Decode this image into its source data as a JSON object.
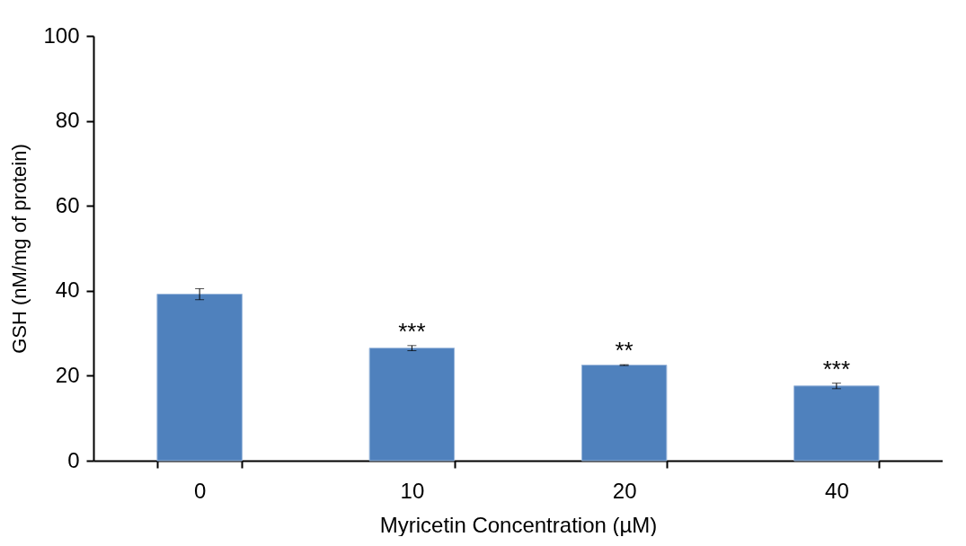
{
  "chart_data": {
    "type": "bar",
    "xlabel": "Myricetin Concentration (µM)",
    "ylabel": "GSH (nM/mg of protein)",
    "categories": [
      "0",
      "10",
      "20",
      "40"
    ],
    "values": [
      39.2,
      26.5,
      22.5,
      17.6
    ],
    "errors": [
      1.3,
      0.6,
      0.1,
      0.65
    ],
    "color": "#4f81bd",
    "ylim": [
      0,
      100
    ],
    "yticks": [
      0,
      20,
      40,
      60,
      80,
      100
    ],
    "annotations": [
      {
        "text": "***",
        "x": "10",
        "y": 27.1
      },
      {
        "text": "**",
        "x": "20",
        "y": 22.6
      },
      {
        "text": "***",
        "x": "40",
        "y": 18.25
      }
    ]
  }
}
